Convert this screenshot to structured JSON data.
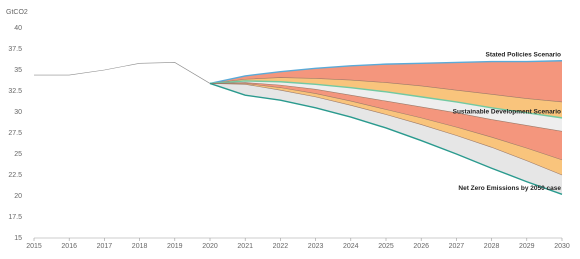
{
  "chart_data": {
    "type": "line",
    "y_label": "GtCO2",
    "x": [
      2015,
      2016,
      2017,
      2018,
      2019,
      2020,
      2021,
      2022,
      2023,
      2024,
      2025,
      2026,
      2027,
      2028,
      2029,
      2030
    ],
    "xlim": [
      2015,
      2030
    ],
    "xticks": [
      2015,
      2016,
      2017,
      2018,
      2019,
      2020,
      2021,
      2022,
      2023,
      2024,
      2025,
      2026,
      2027,
      2028,
      2029,
      2030
    ],
    "ylim": [
      15,
      40
    ],
    "yticks": [
      15,
      17.5,
      20,
      22.5,
      25,
      27.5,
      30,
      32.5,
      35,
      37.5,
      40
    ],
    "grid": false,
    "series": [
      {
        "color": "#8c8c8c",
        "values": [
          34.4,
          34.4,
          35.0,
          35.8,
          35.9,
          33.4,
          null,
          null,
          null,
          null,
          null,
          null,
          null,
          null,
          null,
          null
        ]
      },
      {
        "name": "Stated Policies Scenario",
        "color": "#5aaad8",
        "fill": "#f4967d",
        "values": [
          null,
          null,
          null,
          null,
          null,
          33.4,
          34.3,
          34.8,
          35.2,
          35.5,
          35.7,
          35.8,
          35.9,
          36.0,
          36.0,
          36.1
        ]
      },
      {
        "color": "#9c7a68",
        "fill": "#f9c47c",
        "values": [
          null,
          null,
          null,
          null,
          null,
          33.4,
          33.9,
          34.1,
          34.0,
          33.8,
          33.5,
          33.1,
          32.6,
          32.1,
          31.6,
          31.2
        ]
      },
      {
        "name": "Sustainable Development Scenario",
        "color": "#72c9a2",
        "fill": "#eeeeee",
        "values": [
          null,
          null,
          null,
          null,
          null,
          33.4,
          33.7,
          33.6,
          33.3,
          32.9,
          32.4,
          31.8,
          31.2,
          30.5,
          29.9,
          29.3
        ]
      },
      {
        "color": "#9c7a68",
        "fill": "#f4967d",
        "values": [
          null,
          null,
          null,
          null,
          null,
          33.4,
          33.5,
          33.2,
          32.7,
          32.0,
          31.3,
          30.6,
          29.9,
          29.1,
          28.4,
          27.7
        ]
      },
      {
        "color": "#9c7a68",
        "fill": "#f9c47c",
        "values": [
          null,
          null,
          null,
          null,
          null,
          33.4,
          33.4,
          32.9,
          32.2,
          31.3,
          30.3,
          29.3,
          28.2,
          27.0,
          25.7,
          24.3
        ]
      },
      {
        "color": "#9c7a68",
        "fill": "#e6e6e6",
        "values": [
          null,
          null,
          null,
          null,
          null,
          33.4,
          33.3,
          32.6,
          31.8,
          30.8,
          29.7,
          28.5,
          27.2,
          25.8,
          24.2,
          22.5
        ]
      },
      {
        "name": "Net Zero Emissions by 2050 case",
        "color": "#2a9a8e",
        "values": [
          null,
          null,
          null,
          null,
          null,
          33.4,
          32.0,
          31.4,
          30.5,
          29.4,
          28.1,
          26.6,
          25.0,
          23.3,
          21.7,
          20.2
        ]
      }
    ]
  }
}
